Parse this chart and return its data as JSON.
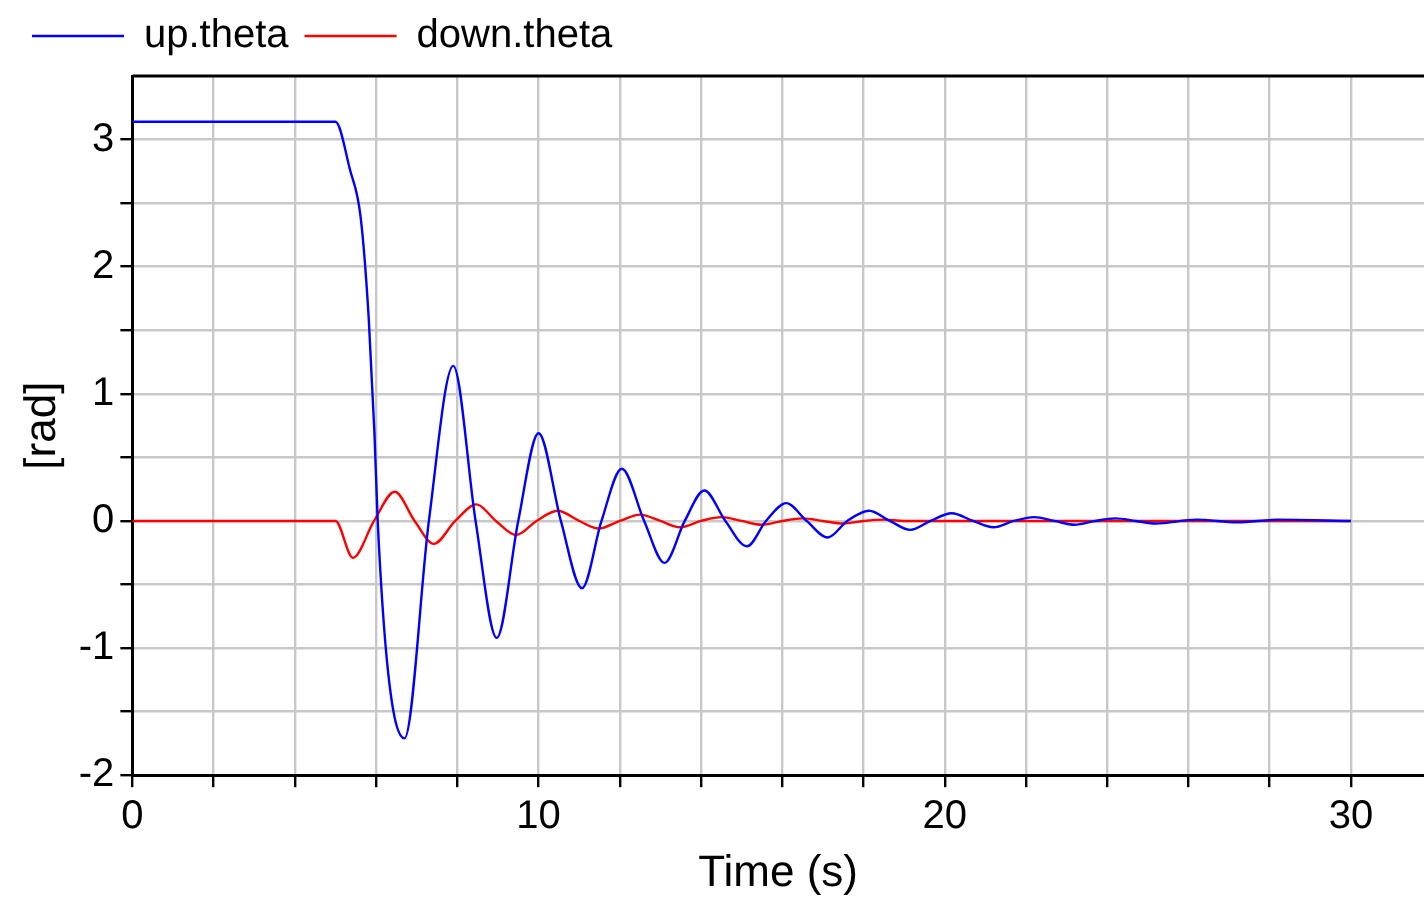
{
  "chart_data": {
    "type": "line",
    "xlabel": "Time (s)",
    "ylabel": "[rad]",
    "xlim": [
      0,
      31.8
    ],
    "ylim": [
      -2,
      3.5
    ],
    "xticks": [
      0,
      {
        "value": 2,
        "label": null
      },
      {
        "value": 4,
        "label": null
      },
      {
        "value": 6,
        "label": null
      },
      {
        "value": 8,
        "label": null
      },
      10,
      {
        "value": 12,
        "label": null
      },
      {
        "value": 14,
        "label": null
      },
      {
        "value": 16,
        "label": null
      },
      {
        "value": 18,
        "label": null
      },
      20,
      {
        "value": 22,
        "label": null
      },
      {
        "value": 24,
        "label": null
      },
      {
        "value": 26,
        "label": null
      },
      {
        "value": 28,
        "label": null
      },
      30
    ],
    "yticks": [
      -2,
      {
        "value": -1.5,
        "label": null
      },
      -1,
      {
        "value": -0.5,
        "label": null
      },
      0,
      {
        "value": 0.5,
        "label": null
      },
      1,
      {
        "value": 1.5,
        "label": null
      },
      2,
      {
        "value": 2.5,
        "label": null
      },
      3
    ],
    "grid": true,
    "legend": "top left",
    "marker": "none",
    "line_style": "solid",
    "series": [
      {
        "name": "up.theta",
        "color": "#0000ff",
        "x": [
          0,
          5,
          5.36,
          5.62,
          5.82,
          5.96,
          6.04,
          6.3,
          6.7,
          7.3,
          7.9,
          8.45,
          8.97,
          9.5,
          10.0,
          10.55,
          11.07,
          11.55,
          12.05,
          12.6,
          13.1,
          13.6,
          14.08,
          14.6,
          15.13,
          15.6,
          16.1,
          16.6,
          17.12,
          17.6,
          18.14,
          18.65,
          19.15,
          19.65,
          20.17,
          20.7,
          21.2,
          21.7,
          22.2,
          22.7,
          23.2,
          23.7,
          24.2,
          24.7,
          25.2,
          26.2,
          27.2,
          28.2,
          30
        ],
        "values": [
          3.14,
          3.14,
          2.76,
          2.39,
          1.59,
          0.69,
          0,
          -1.2,
          -1.71,
          0,
          1.22,
          0,
          -0.92,
          0,
          0.69,
          0,
          -0.53,
          0,
          0.41,
          0,
          -0.33,
          0,
          0.24,
          0,
          -0.2,
          0,
          0.14,
          0,
          -0.13,
          0,
          0.08,
          0,
          -0.07,
          0,
          0.06,
          0,
          -0.05,
          0,
          0.03,
          0,
          -0.03,
          0,
          0.02,
          0,
          -0.02,
          0.01,
          -0.01,
          0.01,
          0
        ]
      },
      {
        "name": "down.theta",
        "color": "#ff0000",
        "x": [
          0,
          5,
          5.43,
          5.95,
          6.46,
          6.95,
          7.42,
          7.95,
          8.47,
          8.95,
          9.45,
          9.95,
          10.47,
          11,
          11.48,
          12,
          12.5,
          13,
          13.48,
          14,
          14.5,
          15,
          15.5,
          16,
          16.5,
          17,
          17.5,
          18,
          18.5,
          19,
          30
        ],
        "values": [
          0,
          0,
          -0.29,
          0,
          0.23,
          0,
          -0.18,
          0,
          0.13,
          0,
          -0.11,
          0,
          0.08,
          0,
          -0.06,
          0,
          0.05,
          0,
          -0.05,
          0,
          0.03,
          0,
          -0.03,
          0,
          0.02,
          0,
          -0.02,
          0,
          0.01,
          0,
          0
        ]
      }
    ]
  }
}
